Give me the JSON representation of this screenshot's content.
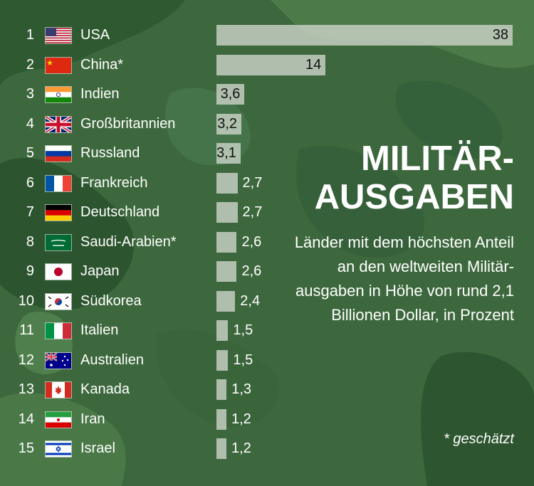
{
  "chart_data": {
    "type": "bar",
    "title": "MILITÄR-\nAUSGABEN",
    "subtitle": "Länder mit dem höchsten Anteil an den weltweiten Militär- ausgaben in Höhe von rund 2,1 Billionen Dollar, in Prozent",
    "note": "* geschätzt",
    "categories": [
      "USA",
      "China*",
      "Indien",
      "Großbritannien",
      "Russland",
      "Frankreich",
      "Deutschland",
      "Saudi-Arabien*",
      "Japan",
      "Südkorea",
      "Italien",
      "Australien",
      "Kanada",
      "Iran",
      "Israel"
    ],
    "ranks": [
      "1",
      "2",
      "3",
      "4",
      "5",
      "6",
      "7",
      "8",
      "9",
      "10",
      "11",
      "12",
      "13",
      "14",
      "15"
    ],
    "values": [
      38,
      14,
      3.6,
      3.2,
      3.1,
      2.7,
      2.7,
      2.6,
      2.6,
      2.4,
      1.5,
      1.5,
      1.3,
      1.2,
      1.2
    ],
    "value_labels": [
      "38",
      "14",
      "3,6",
      "3,2",
      "3,1",
      "2,7",
      "2,7",
      "2,6",
      "2,6",
      "2,4",
      "1,5",
      "1,5",
      "1,3",
      "1,2",
      "1,2"
    ],
    "flag_icons": [
      "us-flag-icon",
      "cn-flag-icon",
      "in-flag-icon",
      "gb-flag-icon",
      "ru-flag-icon",
      "fr-flag-icon",
      "de-flag-icon",
      "sa-flag-icon",
      "jp-flag-icon",
      "kr-flag-icon",
      "it-flag-icon",
      "au-flag-icon",
      "ca-flag-icon",
      "ir-flag-icon",
      "il-flag-icon"
    ],
    "xlim": [
      0,
      38
    ],
    "grid": false,
    "legend": "none",
    "colors": {
      "background": "#3f6a3f",
      "bar": "#c9d2c6",
      "text": "#ffffff"
    }
  }
}
